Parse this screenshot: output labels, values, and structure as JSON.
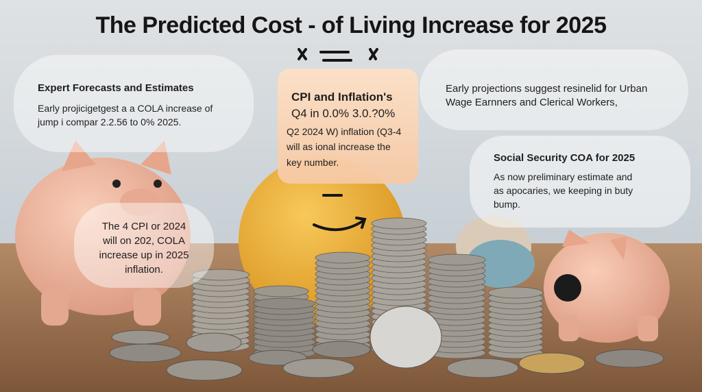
{
  "title": "The Predicted Cost - of Living Increase for 2025",
  "callouts": [
    {
      "heading": "Expert Forecasts and Estimates",
      "lines": [
        "Early projicigetgest a a COLA increase of",
        "jump i compar 2.2.56 to 0% 2025."
      ]
    },
    {
      "heading": "CPI and Inflation's",
      "lines": [
        "Q4 in 0.0% 3.0.?0%",
        "Q2 2024 W) inflation (Q3-4",
        "will as ional increase the",
        "key number."
      ]
    },
    {
      "lines": [
        "Early projections suggest resinelid for Urban",
        "Wage Earnners and Clerical Workers,"
      ]
    },
    {
      "heading": "Social Security COA for 2025",
      "lines": [
        "As now preliminary estimate and",
        "as apocaries, we keeping in buty",
        "bump."
      ]
    },
    {
      "lines": [
        "The 4 CPI or 2024",
        "will on 202, COLA",
        "increase up in 2025",
        "inflation."
      ]
    }
  ]
}
